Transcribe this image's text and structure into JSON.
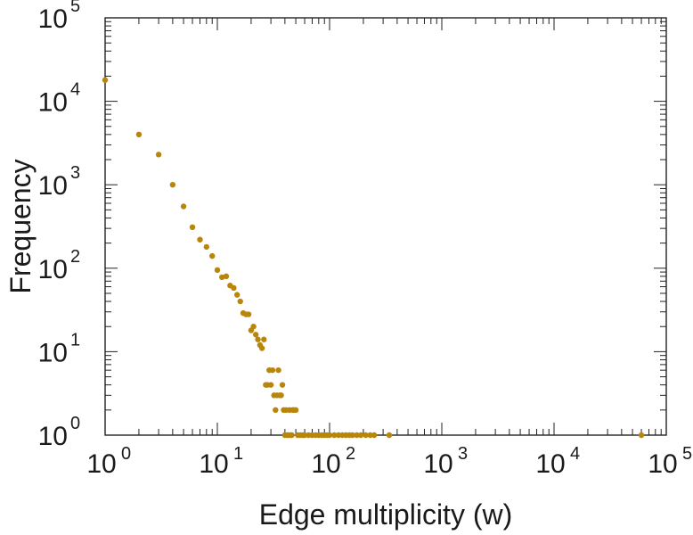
{
  "chart_data": {
    "type": "scatter",
    "xlabel": "Edge multiplicity (w)",
    "ylabel": "Frequency",
    "x_scale": "log",
    "y_scale": "log",
    "xlim": [
      1,
      100000
    ],
    "ylim": [
      1,
      100000
    ],
    "x_ticks": [
      {
        "base": "10",
        "exp": "0"
      },
      {
        "base": "10",
        "exp": "1"
      },
      {
        "base": "10",
        "exp": "2"
      },
      {
        "base": "10",
        "exp": "3"
      },
      {
        "base": "10",
        "exp": "4"
      },
      {
        "base": "10",
        "exp": "5"
      }
    ],
    "y_ticks": [
      {
        "base": "10",
        "exp": "0"
      },
      {
        "base": "10",
        "exp": "1"
      },
      {
        "base": "10",
        "exp": "2"
      },
      {
        "base": "10",
        "exp": "3"
      },
      {
        "base": "10",
        "exp": "4"
      },
      {
        "base": "10",
        "exp": "5"
      }
    ],
    "grid": false,
    "legend": "none",
    "marker_color": "#b8860b",
    "series": [
      {
        "points": [
          [
            1,
            18000
          ],
          [
            2,
            4000
          ],
          [
            3,
            2300
          ],
          [
            4,
            1000
          ],
          [
            5,
            550
          ],
          [
            6,
            310
          ],
          [
            7,
            220
          ],
          [
            8,
            180
          ],
          [
            9,
            140
          ],
          [
            10,
            95
          ],
          [
            11,
            78
          ],
          [
            12,
            80
          ],
          [
            13,
            62
          ],
          [
            14,
            58
          ],
          [
            15,
            48
          ],
          [
            16,
            40
          ],
          [
            17,
            29
          ],
          [
            18,
            28
          ],
          [
            19,
            28
          ],
          [
            20,
            18
          ],
          [
            21,
            20
          ],
          [
            22,
            16
          ],
          [
            23,
            14
          ],
          [
            24,
            12
          ],
          [
            25,
            11
          ],
          [
            26,
            14
          ],
          [
            27,
            4
          ],
          [
            28,
            4
          ],
          [
            29,
            6
          ],
          [
            30,
            4
          ],
          [
            31,
            6
          ],
          [
            32,
            3
          ],
          [
            33,
            2
          ],
          [
            34,
            3
          ],
          [
            35,
            6
          ],
          [
            36,
            3
          ],
          [
            37,
            3
          ],
          [
            38,
            4
          ],
          [
            39,
            2
          ],
          [
            40,
            1
          ],
          [
            41,
            2
          ],
          [
            42,
            1
          ],
          [
            43,
            1
          ],
          [
            44,
            2
          ],
          [
            45,
            1
          ],
          [
            46,
            1
          ],
          [
            47,
            2
          ],
          [
            48,
            2
          ],
          [
            50,
            2
          ],
          [
            52,
            1
          ],
          [
            55,
            1
          ],
          [
            58,
            1
          ],
          [
            60,
            1
          ],
          [
            65,
            1
          ],
          [
            70,
            1
          ],
          [
            75,
            1
          ],
          [
            80,
            1
          ],
          [
            85,
            1
          ],
          [
            90,
            1
          ],
          [
            95,
            1
          ],
          [
            100,
            1
          ],
          [
            110,
            1
          ],
          [
            120,
            1
          ],
          [
            130,
            1
          ],
          [
            140,
            1
          ],
          [
            150,
            1
          ],
          [
            160,
            1
          ],
          [
            175,
            1
          ],
          [
            190,
            1
          ],
          [
            210,
            1
          ],
          [
            230,
            1
          ],
          [
            250,
            1
          ],
          [
            340,
            1
          ],
          [
            60000,
            1
          ]
        ]
      }
    ]
  }
}
